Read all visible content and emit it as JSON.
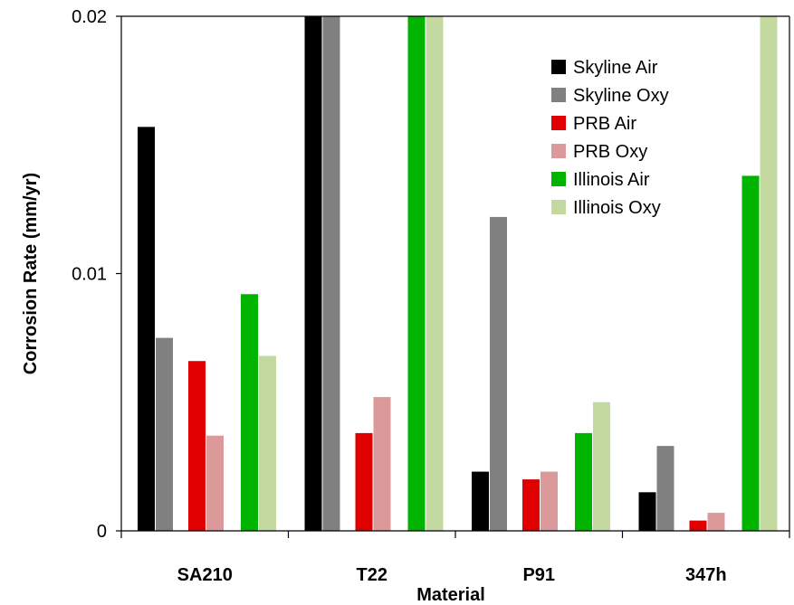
{
  "chart_data": {
    "type": "bar",
    "title": "",
    "xlabel": "Material",
    "ylabel": "Corrosion Rate (mm/yr)",
    "ylim": [
      0,
      0.02
    ],
    "yticks": [
      "0",
      "0.01",
      "0.02"
    ],
    "ytick_values": [
      0,
      0.01,
      0.02
    ],
    "grid": false,
    "legend_position": "top-right",
    "categories": [
      "SA210",
      "T22",
      "P91",
      "347h"
    ],
    "series": [
      {
        "name": "Skyline Air",
        "color": "#000000",
        "values": [
          0.0157,
          0.02,
          0.0023,
          0.0015
        ]
      },
      {
        "name": "Skyline Oxy",
        "color": "#808080",
        "values": [
          0.0075,
          0.02,
          0.0122,
          0.0033
        ]
      },
      {
        "name": "PRB Air",
        "color": "#e00000",
        "values": [
          0.0066,
          0.0038,
          0.002,
          0.0004
        ]
      },
      {
        "name": "PRB Oxy",
        "color": "#dc9999",
        "values": [
          0.0037,
          0.0052,
          0.0023,
          0.0007
        ]
      },
      {
        "name": "Illinois Air",
        "color": "#00b400",
        "values": [
          0.0092,
          0.02,
          0.0038,
          0.0138
        ]
      },
      {
        "name": "Illinois Oxy",
        "color": "#c4d9a0",
        "values": [
          0.0068,
          0.02,
          0.005,
          0.02
        ]
      }
    ]
  }
}
